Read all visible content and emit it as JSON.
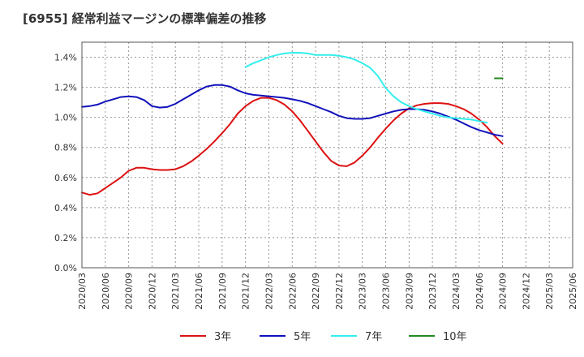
{
  "title": "[6955]  経常利益マージンの標準偏差の推移",
  "chart_data": {
    "type": "line",
    "title": "[6955]  経常利益マージンの標準偏差の推移",
    "xlabel": "",
    "ylabel": "",
    "ylim": [
      0,
      1.5
    ],
    "yticks": [
      0.0,
      0.2,
      0.4,
      0.6,
      0.8,
      1.0,
      1.2,
      1.4
    ],
    "ytick_labels": [
      "0.0%",
      "0.2%",
      "0.4%",
      "0.6%",
      "0.8%",
      "1.0%",
      "1.2%",
      "1.4%"
    ],
    "xticks": [
      "2020/03",
      "2020/06",
      "2020/09",
      "2020/12",
      "2021/03",
      "2021/06",
      "2021/09",
      "2021/12",
      "2022/03",
      "2022/06",
      "2022/09",
      "2022/12",
      "2023/03",
      "2023/06",
      "2023/09",
      "2023/12",
      "2024/03",
      "2024/06",
      "2024/09",
      "2024/12",
      "2025/03",
      "2025/06"
    ],
    "grid": true,
    "legend_position": "bottom",
    "series": [
      {
        "name": "3年",
        "color": "#dd1111",
        "values": [
          [
            "2020/03",
            0.5
          ],
          [
            "2020/04",
            0.485
          ],
          [
            "2020/05",
            0.495
          ],
          [
            "2020/06",
            0.53
          ],
          [
            "2020/07",
            0.565
          ],
          [
            "2020/08",
            0.6
          ],
          [
            "2020/09",
            0.645
          ],
          [
            "2020/10",
            0.665
          ],
          [
            "2020/11",
            0.665
          ],
          [
            "2020/12",
            0.655
          ],
          [
            "2021/01",
            0.65
          ],
          [
            "2021/02",
            0.65
          ],
          [
            "2021/03",
            0.655
          ],
          [
            "2021/04",
            0.675
          ],
          [
            "2021/05",
            0.705
          ],
          [
            "2021/06",
            0.745
          ],
          [
            "2021/07",
            0.79
          ],
          [
            "2021/08",
            0.84
          ],
          [
            "2021/09",
            0.895
          ],
          [
            "2021/10",
            0.955
          ],
          [
            "2021/11",
            1.025
          ],
          [
            "2021/12",
            1.075
          ],
          [
            "2022/01",
            1.11
          ],
          [
            "2022/02",
            1.13
          ],
          [
            "2022/03",
            1.13
          ],
          [
            "2022/04",
            1.115
          ],
          [
            "2022/05",
            1.085
          ],
          [
            "2022/06",
            1.04
          ],
          [
            "2022/07",
            0.98
          ],
          [
            "2022/08",
            0.91
          ],
          [
            "2022/09",
            0.84
          ],
          [
            "2022/10",
            0.77
          ],
          [
            "2022/11",
            0.71
          ],
          [
            "2022/12",
            0.68
          ],
          [
            "2023/01",
            0.675
          ],
          [
            "2023/02",
            0.7
          ],
          [
            "2023/03",
            0.745
          ],
          [
            "2023/04",
            0.8
          ],
          [
            "2023/05",
            0.865
          ],
          [
            "2023/06",
            0.925
          ],
          [
            "2023/07",
            0.98
          ],
          [
            "2023/08",
            1.025
          ],
          [
            "2023/09",
            1.06
          ],
          [
            "2023/10",
            1.08
          ],
          [
            "2023/11",
            1.09
          ],
          [
            "2023/12",
            1.095
          ],
          [
            "2024/01",
            1.095
          ],
          [
            "2024/02",
            1.09
          ],
          [
            "2024/03",
            1.075
          ],
          [
            "2024/04",
            1.055
          ],
          [
            "2024/05",
            1.025
          ],
          [
            "2024/06",
            0.985
          ],
          [
            "2024/07",
            0.935
          ],
          [
            "2024/08",
            0.875
          ],
          [
            "2024/09",
            0.825
          ]
        ]
      },
      {
        "name": "5年",
        "color": "#1111bb",
        "values": [
          [
            "2020/03",
            1.07
          ],
          [
            "2020/04",
            1.075
          ],
          [
            "2020/05",
            1.085
          ],
          [
            "2020/06",
            1.105
          ],
          [
            "2020/07",
            1.12
          ],
          [
            "2020/08",
            1.135
          ],
          [
            "2020/09",
            1.14
          ],
          [
            "2020/10",
            1.135
          ],
          [
            "2020/11",
            1.115
          ],
          [
            "2020/12",
            1.075
          ],
          [
            "2021/01",
            1.065
          ],
          [
            "2021/02",
            1.07
          ],
          [
            "2021/03",
            1.09
          ],
          [
            "2021/04",
            1.12
          ],
          [
            "2021/05",
            1.15
          ],
          [
            "2021/06",
            1.18
          ],
          [
            "2021/07",
            1.205
          ],
          [
            "2021/08",
            1.215
          ],
          [
            "2021/09",
            1.215
          ],
          [
            "2021/10",
            1.205
          ],
          [
            "2021/11",
            1.18
          ],
          [
            "2021/12",
            1.16
          ],
          [
            "2022/01",
            1.15
          ],
          [
            "2022/02",
            1.145
          ],
          [
            "2022/03",
            1.14
          ],
          [
            "2022/04",
            1.135
          ],
          [
            "2022/05",
            1.13
          ],
          [
            "2022/06",
            1.12
          ],
          [
            "2022/07",
            1.11
          ],
          [
            "2022/08",
            1.095
          ],
          [
            "2022/09",
            1.075
          ],
          [
            "2022/10",
            1.055
          ],
          [
            "2022/11",
            1.035
          ],
          [
            "2022/12",
            1.01
          ],
          [
            "2023/01",
            0.995
          ],
          [
            "2023/02",
            0.99
          ],
          [
            "2023/03",
            0.99
          ],
          [
            "2023/04",
            0.995
          ],
          [
            "2023/05",
            1.01
          ],
          [
            "2023/06",
            1.025
          ],
          [
            "2023/07",
            1.04
          ],
          [
            "2023/08",
            1.05
          ],
          [
            "2023/09",
            1.055
          ],
          [
            "2023/10",
            1.055
          ],
          [
            "2023/11",
            1.05
          ],
          [
            "2023/12",
            1.04
          ],
          [
            "2024/01",
            1.025
          ],
          [
            "2024/02",
            1.005
          ],
          [
            "2024/03",
            0.985
          ],
          [
            "2024/04",
            0.96
          ],
          [
            "2024/05",
            0.935
          ],
          [
            "2024/06",
            0.915
          ],
          [
            "2024/07",
            0.9
          ],
          [
            "2024/08",
            0.885
          ],
          [
            "2024/09",
            0.875
          ]
        ]
      },
      {
        "name": "7年",
        "color": "#33eeee",
        "values": [
          [
            "2021/12",
            1.335
          ],
          [
            "2022/01",
            1.36
          ],
          [
            "2022/02",
            1.38
          ],
          [
            "2022/03",
            1.4
          ],
          [
            "2022/04",
            1.415
          ],
          [
            "2022/05",
            1.425
          ],
          [
            "2022/06",
            1.43
          ],
          [
            "2022/07",
            1.43
          ],
          [
            "2022/08",
            1.425
          ],
          [
            "2022/09",
            1.415
          ],
          [
            "2022/10",
            1.415
          ],
          [
            "2022/11",
            1.415
          ],
          [
            "2022/12",
            1.41
          ],
          [
            "2023/01",
            1.4
          ],
          [
            "2023/02",
            1.385
          ],
          [
            "2023/03",
            1.36
          ],
          [
            "2023/04",
            1.33
          ],
          [
            "2023/05",
            1.275
          ],
          [
            "2023/06",
            1.195
          ],
          [
            "2023/07",
            1.14
          ],
          [
            "2023/08",
            1.1
          ],
          [
            "2023/09",
            1.075
          ],
          [
            "2023/10",
            1.055
          ],
          [
            "2023/11",
            1.04
          ],
          [
            "2023/12",
            1.025
          ],
          [
            "2024/01",
            1.01
          ],
          [
            "2024/02",
            1.0
          ],
          [
            "2024/03",
            0.995
          ],
          [
            "2024/04",
            0.99
          ],
          [
            "2024/05",
            0.985
          ],
          [
            "2024/06",
            0.975
          ],
          [
            "2024/07",
            0.965
          ]
        ]
      },
      {
        "name": "10年",
        "color": "#228822",
        "values": [
          [
            "2024/08",
            1.26
          ],
          [
            "2024/09",
            1.26
          ]
        ]
      }
    ]
  }
}
